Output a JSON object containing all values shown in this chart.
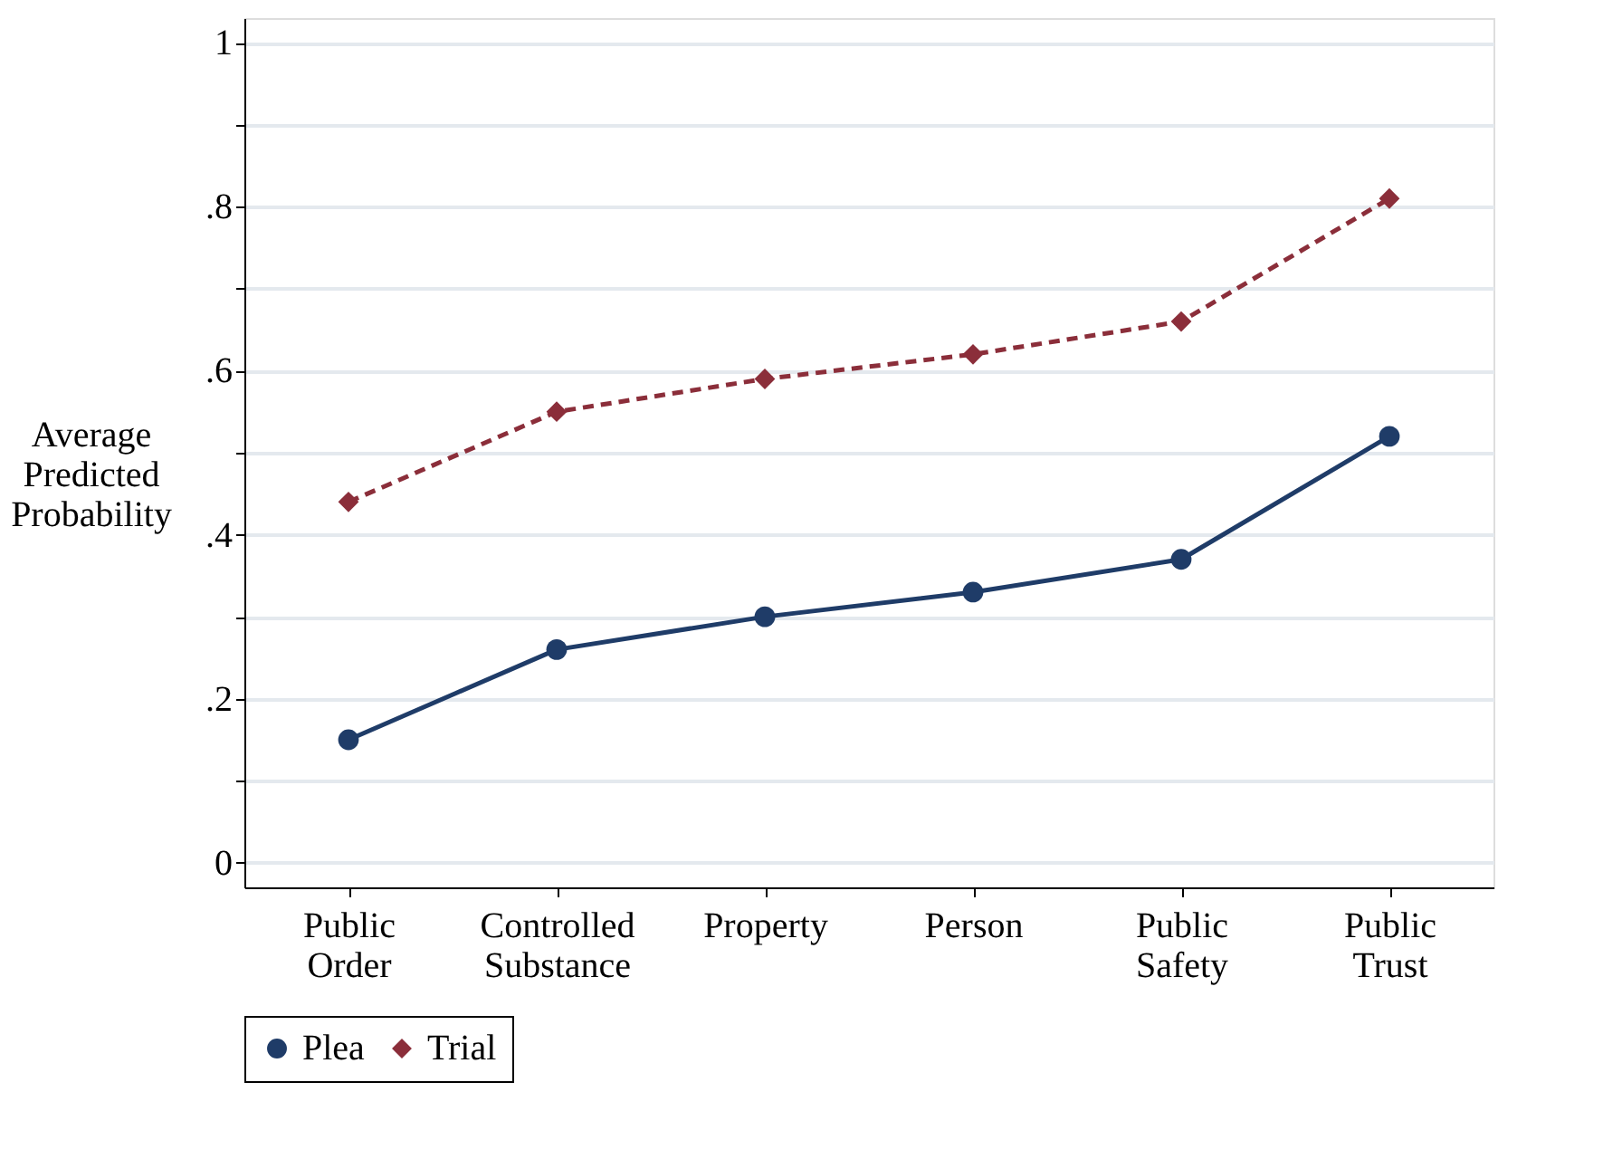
{
  "chart_data": {
    "type": "line",
    "ylabel": "Average Predicted Probability",
    "categories": [
      "Public Order",
      "Controlled Substance",
      "Property",
      "Person",
      "Public Safety",
      "Public Trust"
    ],
    "series": [
      {
        "name": "Plea",
        "color": "#1f3c68",
        "marker": "circle",
        "line_style": "solid",
        "values": [
          0.15,
          0.26,
          0.3,
          0.33,
          0.37,
          0.52
        ]
      },
      {
        "name": "Trial",
        "color": "#8b2e3a",
        "marker": "diamond",
        "line_style": "dashed",
        "values": [
          0.44,
          0.55,
          0.59,
          0.62,
          0.66,
          0.81
        ]
      }
    ],
    "ylim": [
      -0.03,
      1.03
    ],
    "yticks": [
      {
        "value": 0,
        "label": "0"
      },
      {
        "value": 0.1,
        "label": null
      },
      {
        "value": 0.2,
        "label": ".2"
      },
      {
        "value": 0.3,
        "label": null
      },
      {
        "value": 0.4,
        "label": ".4"
      },
      {
        "value": 0.5,
        "label": null
      },
      {
        "value": 0.6,
        "label": ".6"
      },
      {
        "value": 0.7,
        "label": null
      },
      {
        "value": 0.8,
        "label": ".8"
      },
      {
        "value": 0.9,
        "label": null
      },
      {
        "value": 1,
        "label": "1"
      }
    ],
    "grid": "y",
    "legend": "bottom"
  }
}
